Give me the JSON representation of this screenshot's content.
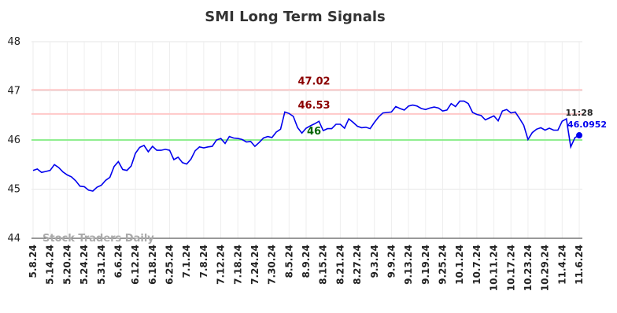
{
  "chart_data": {
    "type": "line",
    "title": "SMI Long Term Signals",
    "watermark": "Stock Traders Daily",
    "categories": [
      "5.8.24",
      null,
      null,
      null,
      "5.14.24",
      null,
      null,
      null,
      "5.20.24",
      null,
      null,
      null,
      "5.24.24",
      null,
      null,
      null,
      "5.31.24",
      null,
      null,
      null,
      "6.6.24",
      null,
      null,
      null,
      "6.12.24",
      null,
      null,
      null,
      "6.18.24",
      null,
      null,
      null,
      "6.25.24",
      null,
      null,
      null,
      "7.1.24",
      null,
      null,
      null,
      "7.8.24",
      null,
      null,
      null,
      "7.12.24",
      null,
      null,
      null,
      "7.18.24",
      null,
      null,
      null,
      "7.24.24",
      null,
      null,
      null,
      "7.30.24",
      null,
      null,
      null,
      "8.5.24",
      null,
      null,
      null,
      "8.9.24",
      null,
      null,
      null,
      "8.15.24",
      null,
      null,
      null,
      "8.21.24",
      null,
      null,
      null,
      "8.27.24",
      null,
      null,
      null,
      "9.3.24",
      null,
      null,
      null,
      "9.9.24",
      null,
      null,
      null,
      "9.13.24",
      null,
      null,
      null,
      "9.19.24",
      null,
      null,
      null,
      "9.25.24",
      null,
      null,
      null,
      "10.1.24",
      null,
      null,
      null,
      "10.7.24",
      null,
      null,
      null,
      "10.11.24",
      null,
      null,
      null,
      "10.17.24",
      null,
      null,
      null,
      "10.23.24",
      null,
      null,
      null,
      "10.29.24",
      null,
      null,
      null,
      "11.4.24",
      null,
      null,
      null,
      "11.6.24"
    ],
    "values": [
      45.38,
      45.41,
      45.34,
      45.36,
      45.38,
      45.5,
      45.44,
      45.35,
      45.29,
      45.25,
      45.17,
      45.06,
      45.05,
      44.98,
      44.96,
      45.04,
      45.08,
      45.18,
      45.24,
      45.46,
      45.56,
      45.4,
      45.38,
      45.47,
      45.73,
      45.85,
      45.89,
      45.76,
      45.87,
      45.79,
      45.79,
      45.81,
      45.79,
      45.6,
      45.65,
      45.54,
      45.51,
      45.61,
      45.78,
      45.86,
      45.84,
      45.86,
      45.87,
      46.0,
      46.03,
      45.93,
      46.07,
      46.04,
      46.03,
      46.01,
      45.96,
      45.97,
      45.87,
      45.95,
      46.04,
      46.07,
      46.05,
      46.16,
      46.22,
      46.57,
      46.54,
      46.48,
      46.25,
      46.14,
      46.24,
      46.29,
      46.33,
      46.38,
      46.19,
      46.23,
      46.23,
      46.32,
      46.32,
      46.24,
      46.43,
      46.36,
      46.28,
      46.25,
      46.26,
      46.23,
      46.36,
      46.47,
      46.55,
      46.56,
      46.57,
      46.68,
      46.64,
      46.61,
      46.69,
      46.71,
      46.69,
      46.64,
      46.62,
      46.65,
      46.67,
      46.65,
      46.59,
      46.61,
      46.74,
      46.68,
      46.79,
      46.79,
      46.74,
      46.56,
      46.52,
      46.5,
      46.41,
      46.45,
      46.49,
      46.39,
      46.59,
      46.62,
      46.55,
      46.57,
      46.44,
      46.3,
      46.01,
      46.15,
      46.22,
      46.25,
      46.2,
      46.24,
      46.2,
      46.2,
      46.38,
      46.43,
      45.86,
      46.05,
      46.0952
    ],
    "color": "#0000ee",
    "ylim": [
      44,
      48
    ],
    "yticks": [
      44,
      45,
      46,
      47,
      48
    ],
    "grid": true,
    "hlines": [
      {
        "value": 47.02,
        "color": "#ffc8c8",
        "label_color": "#8b0000"
      },
      {
        "value": 46.53,
        "color": "#ffc8c8",
        "label_color": "#8b0000"
      },
      {
        "value": 46,
        "color": "#90ee90",
        "label_color": "#006400"
      }
    ],
    "last_time": "11:28"
  }
}
